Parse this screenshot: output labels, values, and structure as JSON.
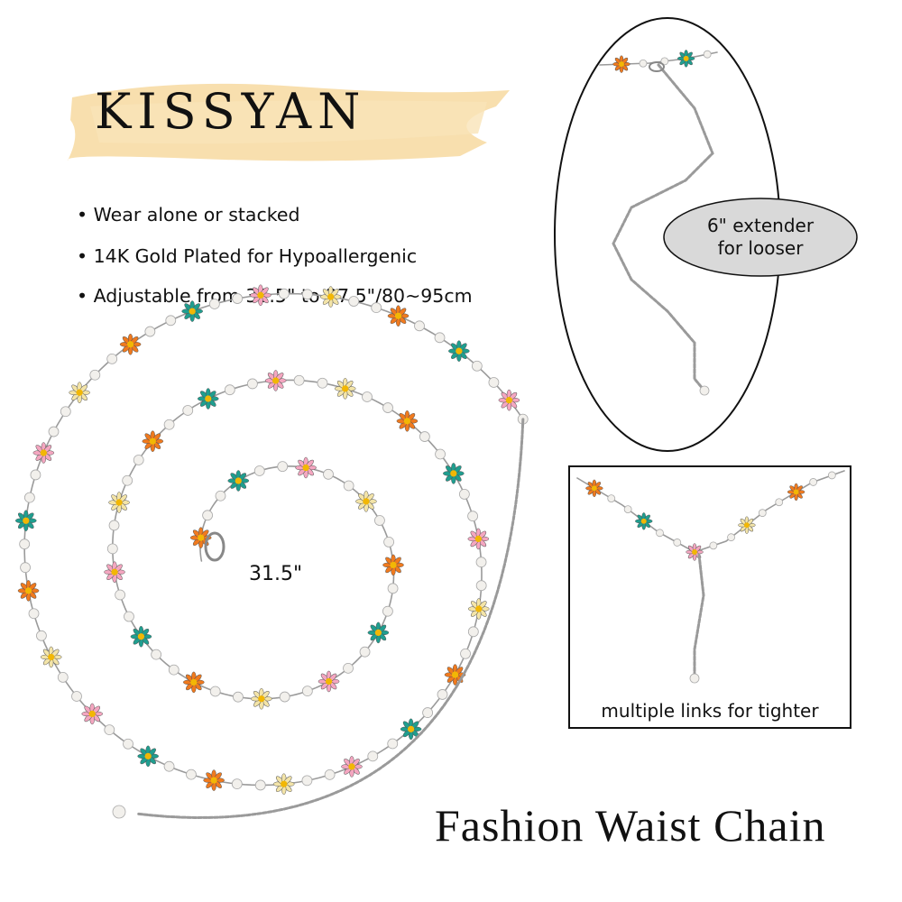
{
  "brand": {
    "logo_text": "KISSYAN",
    "brush_color": "#f7d9a0"
  },
  "features": [
    "• Wear alone or stacked",
    "• 14K Gold Plated for Hypoallergenic",
    "• Adjustable from 31.5\" to 37.5\"/80~95cm"
  ],
  "chain_length_label": "31.5\"",
  "extender_callout": {
    "line1": "6\" extender",
    "line2": "for looser",
    "fill": "#d9d9d9"
  },
  "tight_callout": "multiple links for tighter",
  "product_title": "Fashion Waist Chain",
  "colors": {
    "chain": "#9a9a9a",
    "pearl": "#f2f0ec",
    "flower_center": "#f2b705",
    "flowers": [
      "#f07a1e",
      "#1f9e8f",
      "#f4a6c0",
      "#f3e4a8"
    ]
  }
}
